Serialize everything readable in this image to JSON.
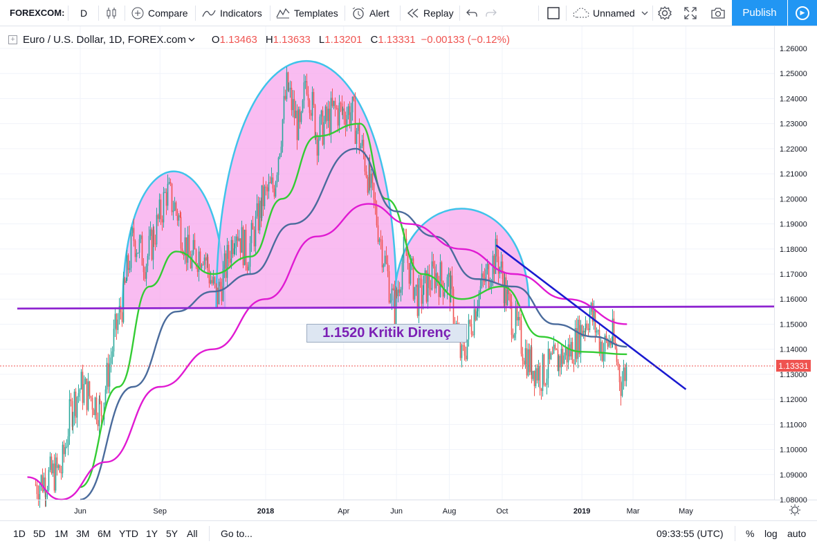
{
  "toolbar": {
    "symbol": "FOREXCOM:",
    "interval": "D",
    "compare": "Compare",
    "indicators": "Indicators",
    "templates": "Templates",
    "alert": "Alert",
    "replay": "Replay",
    "layout_name": "Unnamed",
    "publish": "Publish"
  },
  "legend": {
    "title": "Euro / U.S. Dollar, 1D, FOREX.com",
    "open_label": "O",
    "open": "1.13463",
    "high_label": "H",
    "high": "1.13633",
    "low_label": "L",
    "low": "1.13201",
    "close_label": "C",
    "close": "1.13331",
    "change": "−0.00133 (−0.12%)"
  },
  "annotation": "1.1520 Kritik Direnç",
  "price_scale": {
    "current_price": "1.13331",
    "ticks": [
      "1.26000",
      "1.25000",
      "1.24000",
      "1.23000",
      "1.22000",
      "1.21000",
      "1.20000",
      "1.19000",
      "1.18000",
      "1.17000",
      "1.16000",
      "1.15000",
      "1.14000",
      "1.13000",
      "1.12000",
      "1.11000",
      "1.10000",
      "1.09000",
      "1.08000"
    ]
  },
  "time_scale": {
    "ticks": [
      "Jun",
      "Sep",
      "2018",
      "Apr",
      "Jun",
      "Aug",
      "Oct",
      "2019",
      "Mar",
      "May"
    ]
  },
  "bottom": {
    "ranges": [
      "1D",
      "5D",
      "1M",
      "3M",
      "6M",
      "YTD",
      "1Y",
      "5Y",
      "All"
    ],
    "goto": "Go to...",
    "clock": "09:33:55 (UTC)",
    "percent": "%",
    "log": "log",
    "auto": "auto"
  },
  "colors": {
    "accent": "#2196f3",
    "up_candle": "#26a69a",
    "down_candle": "#ef5350",
    "ma_green": "#33cc33",
    "ma_blue": "#4a6b9c",
    "ma_magenta": "#e01ad2",
    "arc_fill": "#f7a6ec",
    "arc_stroke": "#3fc3ea",
    "support_line": "#8e24d0",
    "trend_line": "#1a1ad0"
  },
  "chart_data": {
    "type": "candlestick",
    "symbol": "Euro / U.S. Dollar",
    "timeframe": "1D",
    "x_range": [
      "2017-04",
      "2019-05"
    ],
    "ylim": [
      1.08,
      1.265
    ],
    "close_path": [
      [
        "2017-04-10",
        1.086
      ],
      [
        "2017-04-25",
        1.089
      ],
      [
        "2017-05-10",
        1.092
      ],
      [
        "2017-05-20",
        1.115
      ],
      [
        "2017-06-01",
        1.125
      ],
      [
        "2017-06-15",
        1.12
      ],
      [
        "2017-06-25",
        1.115
      ],
      [
        "2017-07-10",
        1.145
      ],
      [
        "2017-07-20",
        1.16
      ],
      [
        "2017-08-01",
        1.185
      ],
      [
        "2017-08-15",
        1.175
      ],
      [
        "2017-08-31",
        1.192
      ],
      [
        "2017-09-08",
        1.203
      ],
      [
        "2017-09-20",
        1.195
      ],
      [
        "2017-10-05",
        1.175
      ],
      [
        "2017-10-20",
        1.18
      ],
      [
        "2017-11-05",
        1.16
      ],
      [
        "2017-11-15",
        1.172
      ],
      [
        "2017-11-27",
        1.19
      ],
      [
        "2017-12-10",
        1.177
      ],
      [
        "2017-12-29",
        1.2
      ],
      [
        "2018-01-10",
        1.205
      ],
      [
        "2018-01-25",
        1.245
      ],
      [
        "2018-02-10",
        1.225
      ],
      [
        "2018-02-16",
        1.25
      ],
      [
        "2018-03-01",
        1.225
      ],
      [
        "2018-03-20",
        1.235
      ],
      [
        "2018-04-10",
        1.235
      ],
      [
        "2018-04-25",
        1.215
      ],
      [
        "2018-05-10",
        1.19
      ],
      [
        "2018-05-29",
        1.155
      ],
      [
        "2018-06-10",
        1.18
      ],
      [
        "2018-06-25",
        1.16
      ],
      [
        "2018-07-15",
        1.17
      ],
      [
        "2018-08-01",
        1.165
      ],
      [
        "2018-08-15",
        1.135
      ],
      [
        "2018-09-01",
        1.16
      ],
      [
        "2018-09-24",
        1.178
      ],
      [
        "2018-10-10",
        1.155
      ],
      [
        "2018-10-31",
        1.135
      ],
      [
        "2018-11-15",
        1.13
      ],
      [
        "2018-12-01",
        1.135
      ],
      [
        "2018-12-20",
        1.14
      ],
      [
        "2019-01-10",
        1.155
      ],
      [
        "2019-01-25",
        1.14
      ],
      [
        "2019-02-05",
        1.145
      ],
      [
        "2019-02-15",
        1.127
      ],
      [
        "2019-02-22",
        1.1333
      ]
    ],
    "moving_averages": [
      {
        "color": "green",
        "points": [
          [
            "2017-06-01",
            1.085
          ],
          [
            "2017-07-15",
            1.125
          ],
          [
            "2017-08-20",
            1.165
          ],
          [
            "2017-09-20",
            1.179
          ],
          [
            "2017-11-01",
            1.17
          ],
          [
            "2017-12-15",
            1.177
          ],
          [
            "2018-01-20",
            1.2
          ],
          [
            "2018-03-01",
            1.225
          ],
          [
            "2018-04-20",
            1.23
          ],
          [
            "2018-05-20",
            1.2
          ],
          [
            "2018-07-01",
            1.17
          ],
          [
            "2018-08-15",
            1.16
          ],
          [
            "2018-10-01",
            1.165
          ],
          [
            "2018-11-15",
            1.145
          ],
          [
            "2019-01-01",
            1.139
          ],
          [
            "2019-02-22",
            1.138
          ]
        ]
      },
      {
        "color": "blue",
        "points": [
          [
            "2017-06-01",
            1.08
          ],
          [
            "2017-08-01",
            1.125
          ],
          [
            "2017-09-20",
            1.155
          ],
          [
            "2017-11-01",
            1.163
          ],
          [
            "2017-12-15",
            1.17
          ],
          [
            "2018-02-01",
            1.19
          ],
          [
            "2018-04-15",
            1.22
          ],
          [
            "2018-06-01",
            1.195
          ],
          [
            "2018-07-15",
            1.185
          ],
          [
            "2018-09-01",
            1.168
          ],
          [
            "2018-10-15",
            1.165
          ],
          [
            "2018-12-01",
            1.15
          ],
          [
            "2019-01-15",
            1.145
          ],
          [
            "2019-02-22",
            1.141
          ]
        ]
      },
      {
        "color": "magenta",
        "points": [
          [
            "2017-04-01",
            1.089
          ],
          [
            "2017-05-10",
            1.08
          ],
          [
            "2017-07-01",
            1.095
          ],
          [
            "2017-09-01",
            1.125
          ],
          [
            "2017-11-01",
            1.14
          ],
          [
            "2018-01-01",
            1.16
          ],
          [
            "2018-03-01",
            1.185
          ],
          [
            "2018-04-30",
            1.198
          ],
          [
            "2018-06-15",
            1.19
          ],
          [
            "2018-08-15",
            1.18
          ],
          [
            "2018-10-15",
            1.17
          ],
          [
            "2018-12-15",
            1.16
          ],
          [
            "2019-02-22",
            1.15
          ]
        ]
      }
    ],
    "drawings": {
      "horizontal_line": 1.1565,
      "trend_line": [
        [
          "2018-09-24",
          1.1815
        ],
        [
          "2019-05-01",
          1.124
        ]
      ],
      "arcs": [
        [
          "2017-07-20",
          "2017-11-15",
          1.2115
        ],
        [
          "2017-11-05",
          "2018-06-01",
          1.256
        ],
        [
          "2018-05-29",
          "2018-11-01",
          1.1965
        ]
      ]
    }
  }
}
